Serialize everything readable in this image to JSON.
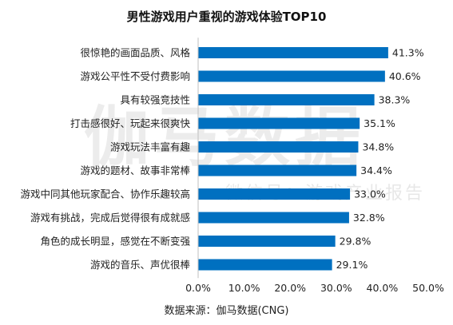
{
  "watermark": {
    "big": "伽马数据",
    "small": "微信号：游戏产业报告"
  },
  "source_text": "数据来源：伽马数据(CNG)",
  "chart_data": {
    "type": "bar",
    "orientation": "horizontal",
    "title": "男性游戏用户重视的游戏体验TOP10",
    "categories": [
      "很惊艳的画面品质、风格",
      "游戏公平性不受付费影响",
      "具有较强竞技性",
      "打击感很好、玩起来很爽快",
      "游戏玩法丰富有趣",
      "游戏的题材、故事非常棒",
      "游戏中同其他玩家配合、协作乐趣较高",
      "游戏有挑战，完成后觉得很有成就感",
      "角色的成长明显，感觉在不断变强",
      "游戏的音乐、声优很棒"
    ],
    "values": [
      41.3,
      40.6,
      38.3,
      35.1,
      34.8,
      34.4,
      33.0,
      32.8,
      29.8,
      29.1
    ],
    "value_labels": [
      "41.3%",
      "40.6%",
      "38.3%",
      "35.1%",
      "34.8%",
      "34.4%",
      "33.0%",
      "32.8%",
      "29.8%",
      "29.1%"
    ],
    "xlim": [
      0,
      50
    ],
    "xticks": [
      "0.0%",
      "10.0%",
      "20.0%",
      "30.0%",
      "40.0%",
      "50.0%"
    ],
    "grid": false,
    "bar_color": "#0070c0"
  }
}
